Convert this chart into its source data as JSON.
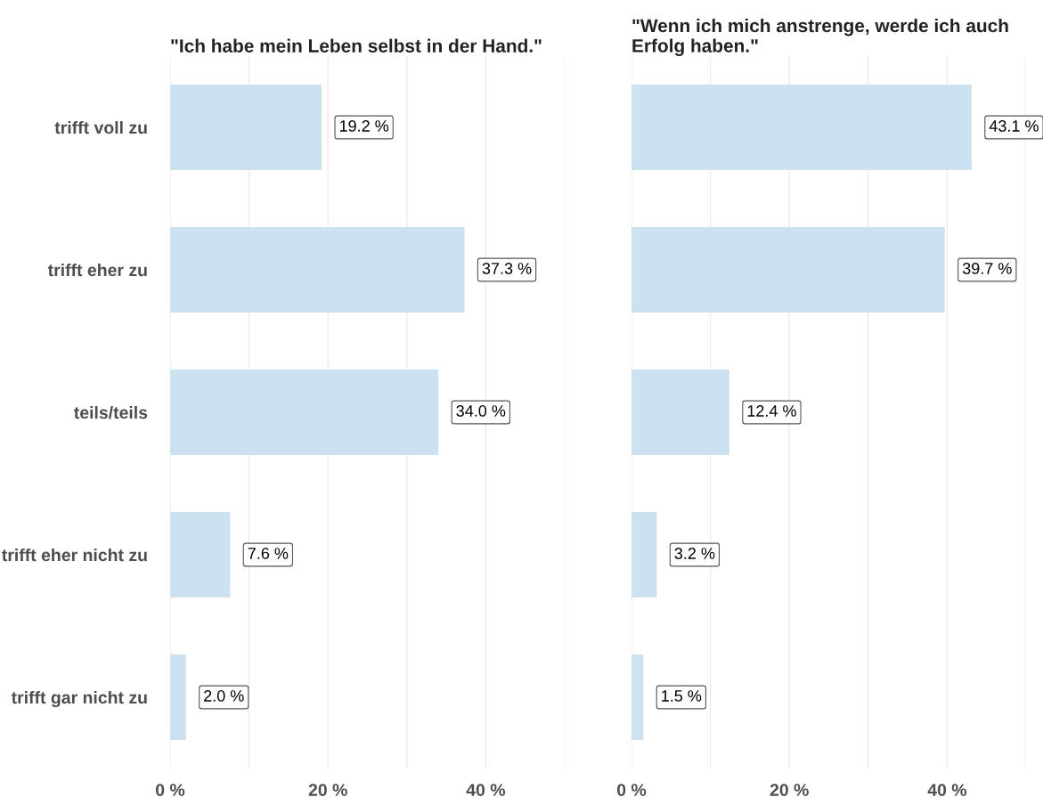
{
  "chart_data": [
    {
      "type": "bar",
      "orientation": "horizontal",
      "title": "\"Ich habe mein Leben selbst in der Hand.\"",
      "categories": [
        "trifft voll zu",
        "trifft eher zu",
        "teils/teils",
        "trifft eher nicht zu",
        "trifft gar nicht zu"
      ],
      "values": [
        19.2,
        37.3,
        34.0,
        7.6,
        2.0
      ],
      "value_labels": [
        "19.2 %",
        "37.3 %",
        "34.0 %",
        "7.6 %",
        "2.0 %"
      ],
      "color": "#cce2f0",
      "xlim": [
        0,
        50
      ],
      "xticks": [
        {
          "value": 0,
          "label": "0 %"
        },
        {
          "value": 10,
          "label": null
        },
        {
          "value": 20,
          "label": "20 %"
        },
        {
          "value": 30,
          "label": null
        },
        {
          "value": 40,
          "label": "40 %"
        },
        {
          "value": 50,
          "label": null
        }
      ],
      "grid": "x"
    },
    {
      "type": "bar",
      "orientation": "horizontal",
      "title": "\"Wenn ich mich anstrenge, werde ich auch\nErfolg haben.\"",
      "categories": [
        null,
        null,
        null,
        null,
        null
      ],
      "values": [
        43.1,
        39.7,
        12.4,
        3.2,
        1.5
      ],
      "value_labels": [
        "43.1 %",
        "39.7 %",
        "12.4 %",
        "3.2 %",
        "1.5 %"
      ],
      "color": "#cce2f0",
      "xlim": [
        0,
        50
      ],
      "xticks": [
        {
          "value": 0,
          "label": "0 %"
        },
        {
          "value": 10,
          "label": null
        },
        {
          "value": 20,
          "label": "20 %"
        },
        {
          "value": 30,
          "label": null
        },
        {
          "value": 40,
          "label": "40 %"
        },
        {
          "value": 50,
          "label": null
        }
      ],
      "grid": "x",
      "tick_labels": "x"
    }
  ]
}
